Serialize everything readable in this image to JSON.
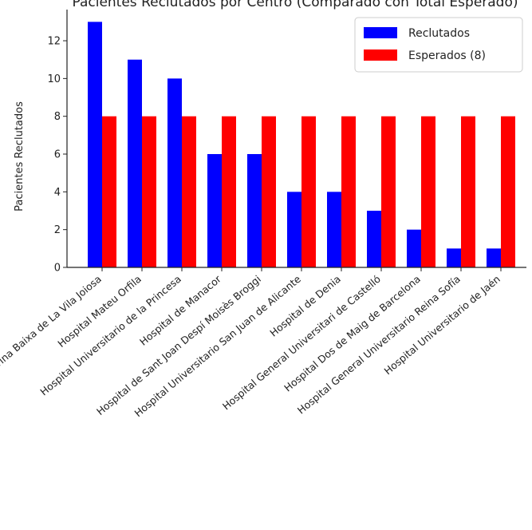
{
  "chart_data": {
    "type": "bar",
    "title": "Pacientes Reclutados por Centro (Comparado con Total Esperado)",
    "xlabel": "",
    "ylabel": "Pacientes Reclutados",
    "ylim": [
      0,
      13.65
    ],
    "yticks": [
      0,
      2,
      4,
      6,
      8,
      10,
      12
    ],
    "grid": false,
    "legend_position": "top-right",
    "categories": [
      "Hospital Marina Baixa de La Vila Joiosa",
      "Hospital Mateu Orfila",
      "Hospital Universitario de la Princesa",
      "Hospital de Manacor",
      "Hospital de Sant Joan Despí Moisès Broggi",
      "Hospital Universitario San Juan de Alicante",
      "Hospital de Denia",
      "Hospital General Universitari de Castelló",
      "Hospital Dos de Maig de Barcelona",
      "Hospital General Universitario Reina Sofía",
      "Hospital Universitario de Jaén"
    ],
    "series": [
      {
        "name": "Reclutados",
        "color": "#0000ff",
        "values": [
          13,
          11,
          10,
          6,
          6,
          4,
          4,
          3,
          2,
          1,
          1
        ]
      },
      {
        "name": "Esperados (8)",
        "color": "#ff0000",
        "values": [
          8,
          8,
          8,
          8,
          8,
          8,
          8,
          8,
          8,
          8,
          8
        ]
      }
    ]
  }
}
